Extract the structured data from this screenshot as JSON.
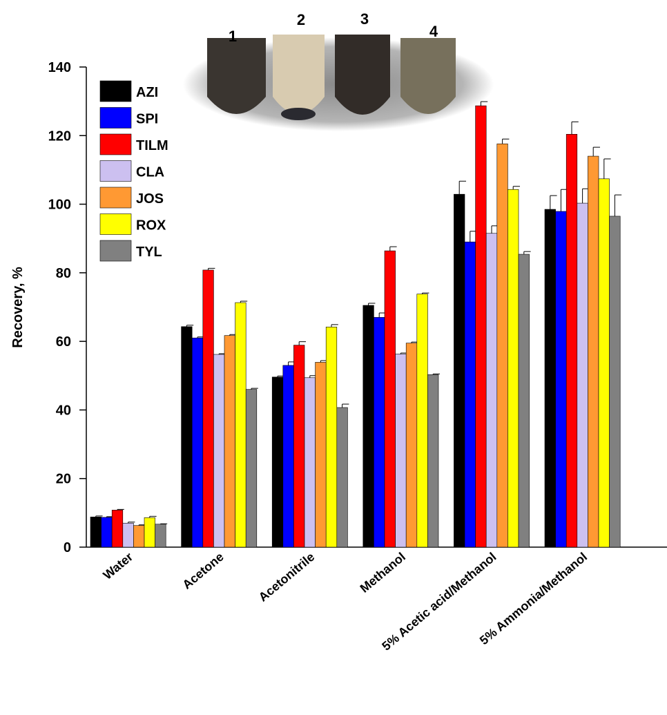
{
  "chart_data": {
    "type": "bar",
    "y_label": "Recovery, %",
    "annotations": [
      "1",
      "2",
      "3",
      "4"
    ],
    "categories": [
      "Water",
      "Acetone",
      "Acetonitrile",
      "Methanol",
      "5% Acetic acid/Methanol",
      "5% Ammonia/Methanol"
    ],
    "series": [
      {
        "name": "AZI",
        "color": "#000000",
        "values": [
          8.8,
          64.3,
          49.6,
          70.5,
          102.9,
          98.5
        ],
        "errors": [
          0.3,
          0.4,
          0.3,
          0.6,
          3.8,
          4.0
        ]
      },
      {
        "name": "SPI",
        "color": "#0000ff",
        "values": [
          8.7,
          61.0,
          53.0,
          67.0,
          89.0,
          97.9
        ],
        "errors": [
          0.2,
          0.3,
          1.0,
          1.3,
          3.1,
          6.4
        ]
      },
      {
        "name": "TILM",
        "color": "#ff0000",
        "values": [
          10.8,
          80.8,
          58.9,
          86.4,
          128.7,
          120.4
        ],
        "errors": [
          0.2,
          0.5,
          1.0,
          1.2,
          1.2,
          3.6
        ]
      },
      {
        "name": "CLA",
        "color": "#ccc0f0",
        "values": [
          7.0,
          56.2,
          49.4,
          56.3,
          91.5,
          100.3
        ],
        "errors": [
          0.3,
          0.2,
          0.6,
          0.3,
          2.2,
          4.2
        ]
      },
      {
        "name": "JOS",
        "color": "#ff9933",
        "values": [
          6.3,
          61.7,
          53.9,
          59.5,
          117.6,
          114.0
        ],
        "errors": [
          0.2,
          0.3,
          0.5,
          0.3,
          1.4,
          2.6
        ]
      },
      {
        "name": "ROX",
        "color": "#ffff00",
        "values": [
          8.6,
          71.3,
          64.2,
          73.8,
          104.3,
          107.4
        ],
        "errors": [
          0.4,
          0.4,
          0.7,
          0.3,
          0.9,
          5.8
        ]
      },
      {
        "name": "TYL",
        "color": "#808080",
        "values": [
          6.7,
          46.0,
          40.7,
          50.3,
          85.4,
          96.5
        ],
        "errors": [
          0.1,
          0.3,
          1.0,
          0.2,
          0.8,
          6.2
        ]
      }
    ],
    "ylim": [
      0,
      140
    ],
    "yticks": [
      0,
      20,
      40,
      60,
      80,
      100,
      120,
      140
    ]
  }
}
